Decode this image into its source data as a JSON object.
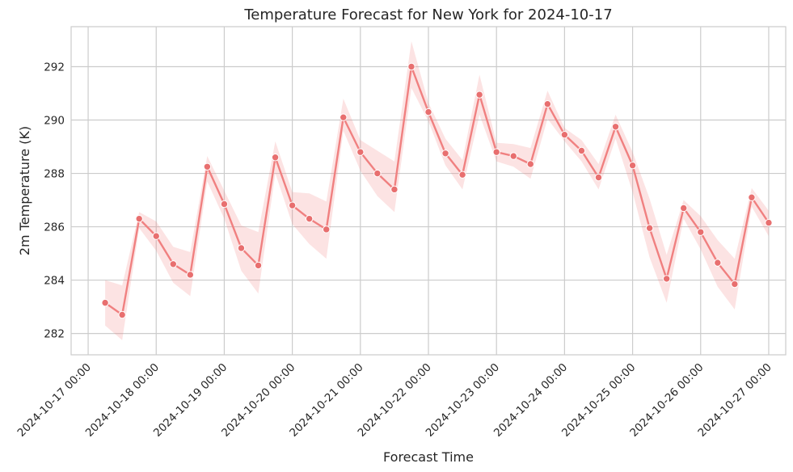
{
  "chart_data": {
    "type": "line",
    "title": "Temperature Forecast for New York for 2024-10-17",
    "xlabel": "Forecast Time",
    "ylabel": "2m Temperature (K)",
    "ylim": [
      281.2,
      293.5
    ],
    "xlim_hours": [
      -6,
      246
    ],
    "yticks": [
      282,
      284,
      286,
      288,
      290,
      292
    ],
    "xticks": [
      "2024-10-17 00:00",
      "2024-10-18 00:00",
      "2024-10-19 00:00",
      "2024-10-20 00:00",
      "2024-10-21 00:00",
      "2024-10-22 00:00",
      "2024-10-23 00:00",
      "2024-10-24 00:00",
      "2024-10-25 00:00",
      "2024-10-26 00:00",
      "2024-10-27 00:00"
    ],
    "grid": true,
    "color": "#f08080",
    "series": [
      {
        "name": "",
        "x": [
          "2024-10-17 06:00",
          "2024-10-17 12:00",
          "2024-10-17 18:00",
          "2024-10-18 00:00",
          "2024-10-18 06:00",
          "2024-10-18 12:00",
          "2024-10-18 18:00",
          "2024-10-19 00:00",
          "2024-10-19 06:00",
          "2024-10-19 12:00",
          "2024-10-19 18:00",
          "2024-10-20 00:00",
          "2024-10-20 06:00",
          "2024-10-20 12:00",
          "2024-10-20 18:00",
          "2024-10-21 00:00",
          "2024-10-21 06:00",
          "2024-10-21 12:00",
          "2024-10-21 18:00",
          "2024-10-22 00:00",
          "2024-10-22 06:00",
          "2024-10-22 12:00",
          "2024-10-22 18:00",
          "2024-10-23 00:00",
          "2024-10-23 06:00",
          "2024-10-23 12:00",
          "2024-10-23 18:00",
          "2024-10-24 00:00",
          "2024-10-24 06:00",
          "2024-10-24 12:00",
          "2024-10-24 18:00",
          "2024-10-25 00:00",
          "2024-10-25 06:00",
          "2024-10-25 12:00",
          "2024-10-25 18:00",
          "2024-10-26 00:00",
          "2024-10-26 06:00",
          "2024-10-26 12:00",
          "2024-10-26 18:00",
          "2024-10-27 00:00"
        ],
        "values": [
          283.15,
          282.7,
          286.3,
          285.65,
          284.6,
          284.2,
          288.25,
          286.85,
          285.2,
          284.55,
          288.6,
          286.8,
          286.3,
          285.9,
          290.1,
          288.8,
          288.0,
          287.4,
          292.0,
          290.3,
          288.75,
          287.95,
          290.95,
          288.8,
          288.65,
          288.35,
          290.6,
          289.45,
          288.85,
          287.85,
          289.75,
          288.3,
          285.95,
          284.05,
          286.7,
          285.8,
          284.65,
          283.85,
          287.1,
          286.15
        ],
        "lower": [
          282.3,
          281.75,
          285.95,
          285.1,
          283.9,
          283.4,
          287.7,
          286.3,
          284.35,
          283.5,
          288.0,
          286.1,
          285.35,
          284.8,
          289.6,
          288.1,
          287.15,
          286.55,
          291.2,
          289.95,
          288.3,
          287.4,
          290.2,
          288.45,
          288.25,
          287.8,
          290.05,
          289.2,
          288.45,
          287.4,
          289.3,
          287.3,
          284.85,
          283.15,
          286.3,
          285.15,
          283.75,
          282.9,
          286.75,
          285.65
        ],
        "upper": [
          284.0,
          283.8,
          286.55,
          286.2,
          285.25,
          285.05,
          288.65,
          287.35,
          286.05,
          285.8,
          289.2,
          287.3,
          287.25,
          286.95,
          290.8,
          289.25,
          288.85,
          288.45,
          292.95,
          290.65,
          289.3,
          288.5,
          291.7,
          289.15,
          289.1,
          288.95,
          291.1,
          289.7,
          289.25,
          288.35,
          290.2,
          288.8,
          287.05,
          284.95,
          287.0,
          286.4,
          285.5,
          284.8,
          287.45,
          286.6
        ]
      }
    ]
  }
}
